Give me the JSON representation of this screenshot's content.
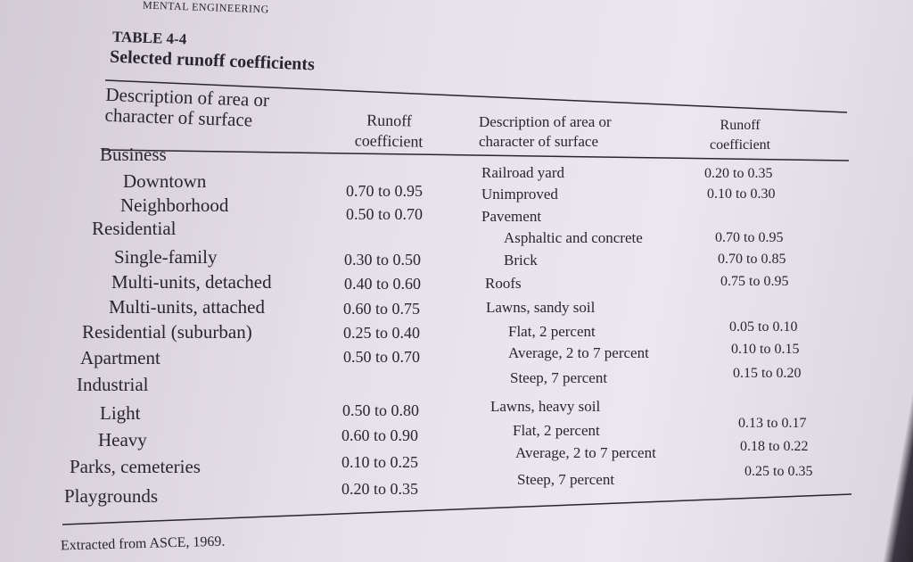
{
  "running_header": "MENTAL ENGINEERING",
  "table": {
    "number": "TABLE 4-4",
    "title": "Selected runoff coefficients",
    "left_header": {
      "description": "Description of area or\ncharacter of surface",
      "coefficient": "Runoff\ncoefficient"
    },
    "right_header": {
      "description": "Description of area or\ncharacter of surface",
      "coefficient": "Runoff\ncoefficient"
    },
    "left_rows": [
      {
        "label": "Business",
        "value": ""
      },
      {
        "label": "Downtown",
        "value": "0.70 to 0.95"
      },
      {
        "label": "Neighborhood",
        "value": "0.50 to 0.70"
      },
      {
        "label": "Residential",
        "value": ""
      },
      {
        "label": "Single-family",
        "value": "0.30 to 0.50"
      },
      {
        "label": "Multi-units, detached",
        "value": "0.40 to 0.60"
      },
      {
        "label": "Multi-units, attached",
        "value": "0.60 to 0.75"
      },
      {
        "label": "Residential (suburban)",
        "value": "0.25 to 0.40"
      },
      {
        "label": "Apartment",
        "value": "0.50 to 0.70"
      },
      {
        "label": "Industrial",
        "value": ""
      },
      {
        "label": "Light",
        "value": "0.50 to 0.80"
      },
      {
        "label": "Heavy",
        "value": "0.60 to 0.90"
      },
      {
        "label": "Parks, cemeteries",
        "value": "0.10 to 0.25"
      },
      {
        "label": "Playgrounds",
        "value": "0.20 to 0.35"
      }
    ],
    "right_rows": [
      {
        "label": "Railroad yard",
        "value": "0.20 to 0.35"
      },
      {
        "label": "Unimproved",
        "value": "0.10 to 0.30"
      },
      {
        "label": "Pavement",
        "value": ""
      },
      {
        "label": "Asphaltic and concrete",
        "value": "0.70 to 0.95"
      },
      {
        "label": "Brick",
        "value": "0.70 to 0.85"
      },
      {
        "label": "Roofs",
        "value": "0.75 to 0.95"
      },
      {
        "label": "Lawns, sandy soil",
        "value": ""
      },
      {
        "label": "Flat, 2 percent",
        "value": "0.05 to 0.10"
      },
      {
        "label": "Average, 2 to 7 percent",
        "value": "0.10 to 0.15"
      },
      {
        "label": "Steep, 7 percent",
        "value": "0.15 to 0.20"
      },
      {
        "label": "Lawns, heavy soil",
        "value": ""
      },
      {
        "label": "Flat, 2 percent",
        "value": "0.13 to 0.17"
      },
      {
        "label": "Average, 2 to 7 percent",
        "value": "0.18 to 0.22"
      },
      {
        "label": "Steep, 7 percent",
        "value": "0.25 to 0.35"
      }
    ]
  },
  "footer": "Extracted from ASCE, 1969."
}
